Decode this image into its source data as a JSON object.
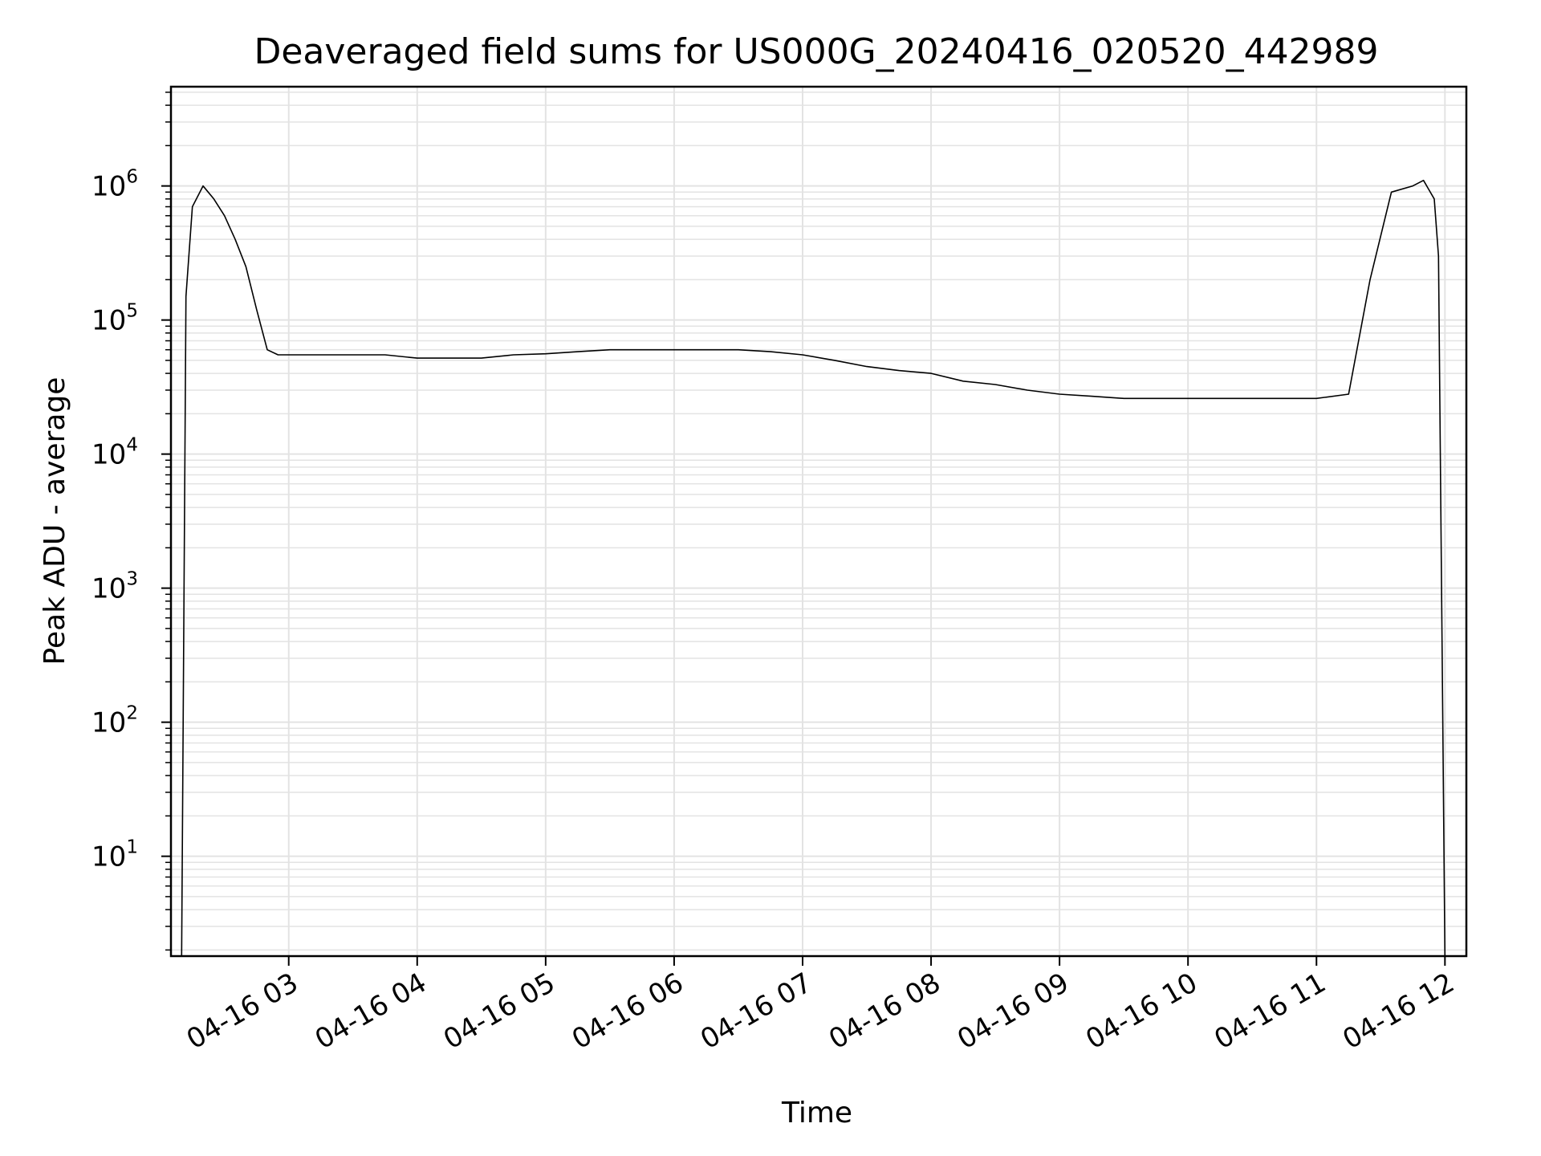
{
  "chart_data": {
    "type": "line",
    "title": "Deaveraged field sums for US000G_20240416_020520_442989",
    "xlabel": "Time",
    "ylabel": "Peak ADU - average",
    "yscale": "log",
    "ylim": [
      1.8,
      5500000
    ],
    "xlim": [
      "2024-04-16 02:05",
      "2024-04-16 12:10"
    ],
    "grid": true,
    "x_ticks": [
      "04-16 03",
      "04-16 04",
      "04-16 05",
      "04-16 06",
      "04-16 07",
      "04-16 08",
      "04-16 09",
      "04-16 10",
      "04-16 11",
      "04-16 12"
    ],
    "y_ticks": [
      {
        "base": "10",
        "exp": "1"
      },
      {
        "base": "10",
        "exp": "2"
      },
      {
        "base": "10",
        "exp": "3"
      },
      {
        "base": "10",
        "exp": "4"
      },
      {
        "base": "10",
        "exp": "5"
      },
      {
        "base": "10",
        "exp": "6"
      }
    ],
    "series": [
      {
        "color": "#000000",
        "x": [
          "2024-04-16 02:10",
          "2024-04-16 02:12",
          "2024-04-16 02:15",
          "2024-04-16 02:20",
          "2024-04-16 02:25",
          "2024-04-16 02:30",
          "2024-04-16 02:35",
          "2024-04-16 02:40",
          "2024-04-16 02:45",
          "2024-04-16 02:50",
          "2024-04-16 02:55",
          "2024-04-16 03:00",
          "2024-04-16 03:15",
          "2024-04-16 03:30",
          "2024-04-16 03:45",
          "2024-04-16 04:00",
          "2024-04-16 04:15",
          "2024-04-16 04:30",
          "2024-04-16 04:45",
          "2024-04-16 05:00",
          "2024-04-16 05:15",
          "2024-04-16 05:30",
          "2024-04-16 05:45",
          "2024-04-16 06:00",
          "2024-04-16 06:15",
          "2024-04-16 06:30",
          "2024-04-16 06:45",
          "2024-04-16 07:00",
          "2024-04-16 07:15",
          "2024-04-16 07:30",
          "2024-04-16 07:45",
          "2024-04-16 08:00",
          "2024-04-16 08:15",
          "2024-04-16 08:30",
          "2024-04-16 08:45",
          "2024-04-16 09:00",
          "2024-04-16 09:15",
          "2024-04-16 09:30",
          "2024-04-16 09:45",
          "2024-04-16 10:00",
          "2024-04-16 10:15",
          "2024-04-16 10:30",
          "2024-04-16 10:45",
          "2024-04-16 11:00",
          "2024-04-16 11:15",
          "2024-04-16 11:25",
          "2024-04-16 11:35",
          "2024-04-16 11:45",
          "2024-04-16 11:50",
          "2024-04-16 11:55",
          "2024-04-16 11:57",
          "2024-04-16 12:00"
        ],
        "y": [
          1.8,
          150000,
          700000,
          1000000,
          800000,
          600000,
          400000,
          250000,
          120000,
          60000,
          55000,
          55000,
          55000,
          55000,
          55000,
          52000,
          52000,
          52000,
          55000,
          56000,
          58000,
          60000,
          60000,
          60000,
          60000,
          60000,
          58000,
          55000,
          50000,
          45000,
          42000,
          40000,
          35000,
          33000,
          30000,
          28000,
          27000,
          26000,
          26000,
          26000,
          26000,
          26000,
          26000,
          26000,
          28000,
          200000,
          900000,
          1000000,
          1100000,
          800000,
          300000,
          1.8
        ]
      }
    ]
  }
}
